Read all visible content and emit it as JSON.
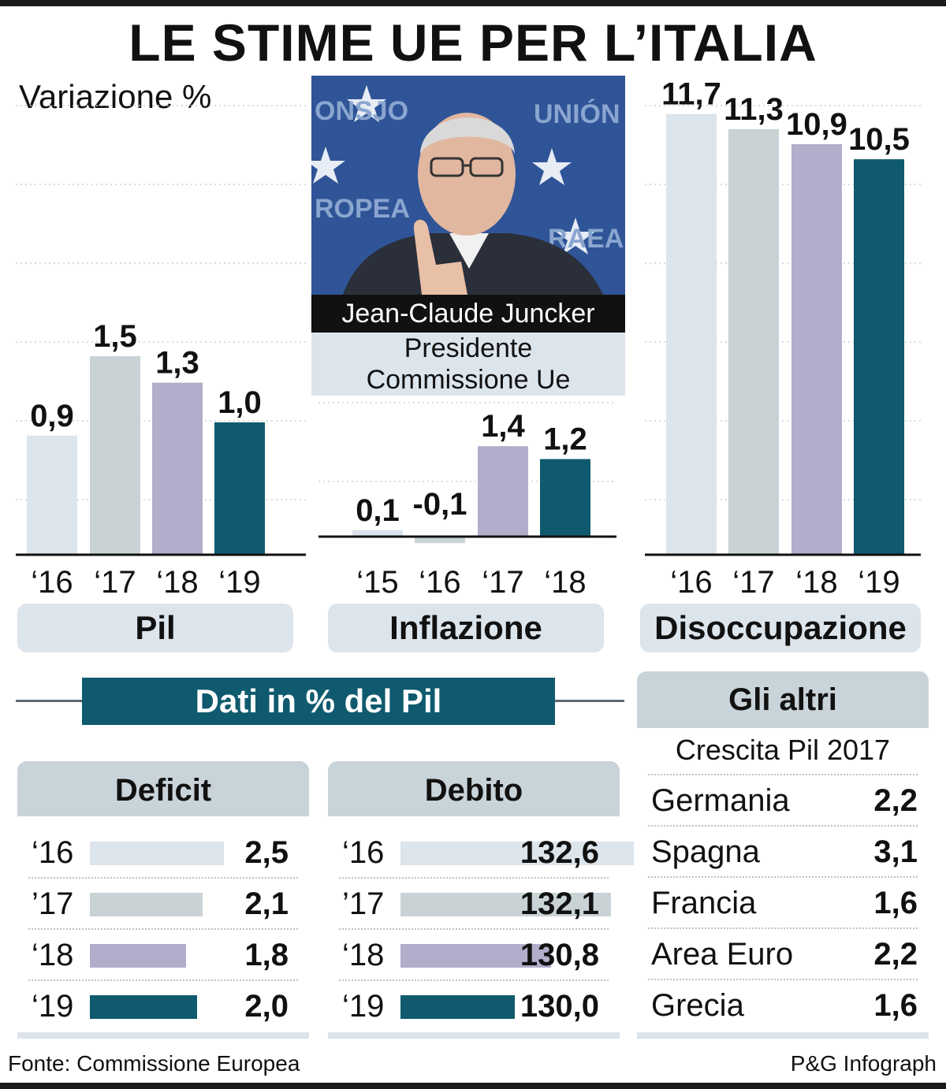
{
  "title": "LE STIME UE PER L’ITALIA",
  "subtitle": "Variazione %",
  "photo": {
    "name": "Jean-Claude Juncker",
    "role_line1": "Presidente",
    "role_line2": "Commissione Ue",
    "background_text_1": "ONSJO",
    "background_text_2": "UNIÓN",
    "background_text_3": "ROPEA",
    "background_text_4": "RAEA"
  },
  "colors": {
    "y2016_light": "#dce4ec",
    "y2017_grey": "#c9d3d6",
    "y2018_lilac": "#b1aecb",
    "y2019_teal": "#0f5a6e",
    "header_band": "#0f5a6e",
    "pill_bg": "#dce4ec"
  },
  "chart_data": [
    {
      "type": "bar",
      "name": "Pil",
      "categories": [
        "‘16",
        "‘17",
        "‘18",
        "‘19"
      ],
      "values": [
        0.9,
        1.5,
        1.3,
        1.0
      ],
      "labels": [
        "0,9",
        "1,5",
        "1,3",
        "1,0"
      ],
      "xlabel": "Pil",
      "ylim": [
        0,
        1.5
      ]
    },
    {
      "type": "bar",
      "name": "Inflazione",
      "categories": [
        "‘15",
        "‘16",
        "‘17",
        "‘18"
      ],
      "values": [
        0.1,
        -0.1,
        1.4,
        1.2
      ],
      "labels": [
        "0,1",
        "-0,1",
        "1,4",
        "1,2"
      ],
      "xlabel": "Inflazione",
      "ylim": [
        -0.1,
        1.4
      ]
    },
    {
      "type": "bar",
      "name": "Disoccupazione",
      "categories": [
        "‘16",
        "‘17",
        "‘18",
        "‘19"
      ],
      "values": [
        11.7,
        11.3,
        10.9,
        10.5
      ],
      "labels": [
        "11,7",
        "11,3",
        "10,9",
        "10,5"
      ],
      "xlabel": "Disoccupazione",
      "ylim": [
        0,
        11.7
      ]
    },
    {
      "type": "bar",
      "orientation": "horizontal",
      "name": "Deficit",
      "categories": [
        "‘16",
        "’17",
        "‘18",
        "‘19"
      ],
      "values": [
        2.5,
        2.1,
        1.8,
        2.0
      ],
      "labels": [
        "2,5",
        "2,1",
        "1,8",
        "2,0"
      ]
    },
    {
      "type": "bar",
      "orientation": "horizontal",
      "name": "Debito",
      "categories": [
        "‘16",
        "’17",
        "‘18",
        "‘19"
      ],
      "values": [
        132.6,
        132.1,
        130.8,
        130.0
      ],
      "labels": [
        "132,6",
        "132,1",
        "130,8",
        "130,0"
      ]
    },
    {
      "type": "table",
      "name": "Gli altri",
      "subtitle": "Crescita Pil 2017",
      "rows": [
        {
          "country": "Germania",
          "value": "2,2"
        },
        {
          "country": "Spagna",
          "value": "3,1"
        },
        {
          "country": "Francia",
          "value": "1,6"
        },
        {
          "country": "Area Euro",
          "value": "2,2"
        },
        {
          "country": "Grecia",
          "value": "1,6"
        }
      ]
    }
  ],
  "sections": {
    "dati_band": "Dati in % del Pil",
    "deficit": "Deficit",
    "debito": "Debito",
    "altri": "Gli altri",
    "altri_sub": "Crescita Pil 2017"
  },
  "footer": {
    "source": "Fonte: Commissione Europea",
    "credit": "P&G Infograph"
  }
}
